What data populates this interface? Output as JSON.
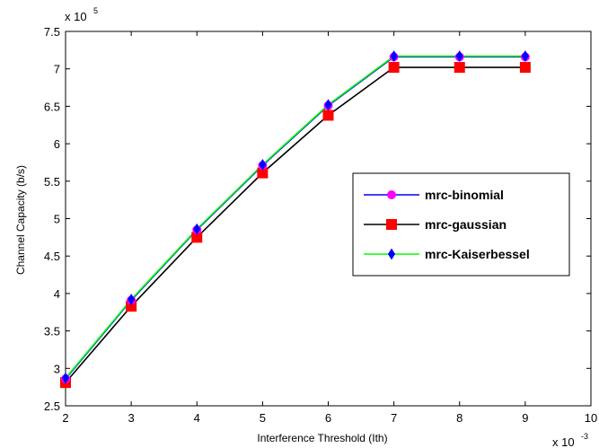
{
  "chart_data": {
    "type": "line",
    "xlabel": "Interference Threshold (Ith)",
    "ylabel": "Channel Capacity (b/s)",
    "x_multiplier_label": "x 10",
    "x_multiplier_exp": "-3",
    "y_multiplier_label": "x 10",
    "y_multiplier_exp": "5",
    "xlim": [
      2,
      10
    ],
    "ylim": [
      2.5,
      7.5
    ],
    "xticks": [
      "2",
      "3",
      "4",
      "5",
      "6",
      "7",
      "8",
      "9",
      "10"
    ],
    "yticks": [
      "2.5",
      "3",
      "3.5",
      "4",
      "4.5",
      "5",
      "5.5",
      "6",
      "6.5",
      "7",
      "7.5"
    ],
    "x": [
      2,
      3,
      4,
      5,
      6,
      7,
      8,
      9
    ],
    "legend_position": "center-right",
    "grid": false,
    "series": [
      {
        "name": "mrc-binomial",
        "color": "#0000ff",
        "marker": "circle",
        "marker_color": "#ff00ff",
        "values": [
          2.86,
          3.91,
          4.85,
          5.71,
          6.51,
          7.16,
          7.16,
          7.16
        ]
      },
      {
        "name": "mrc-gaussian",
        "color": "#000000",
        "marker": "square",
        "marker_color": "#ff0000",
        "values": [
          2.81,
          3.83,
          4.75,
          5.61,
          6.38,
          7.02,
          7.02,
          7.02
        ]
      },
      {
        "name": "mrc-Kaiserbessel",
        "color": "#00ff00",
        "marker": "diamond",
        "marker_color": "#0000ff",
        "values": [
          2.87,
          3.92,
          4.86,
          5.72,
          6.52,
          7.17,
          7.17,
          7.17
        ]
      }
    ]
  }
}
